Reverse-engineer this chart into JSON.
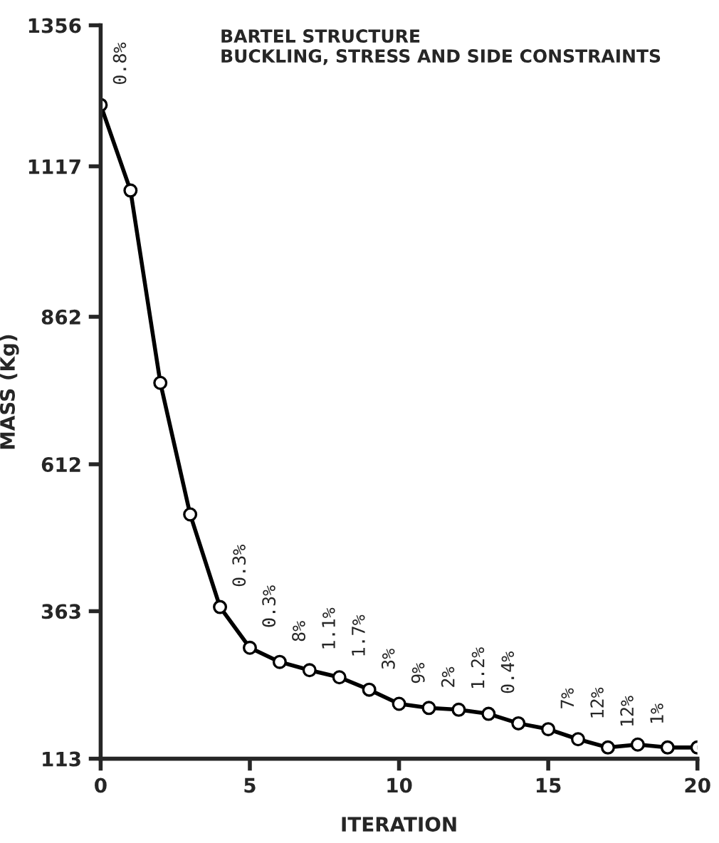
{
  "chart_data": {
    "type": "line",
    "title": "BARTEL STRUCTURE\nBUCKLING, STRESS AND SIDE CONSTRAINTS",
    "xlabel": "ITERATION",
    "ylabel": "MASS (Kg)",
    "x": [
      0,
      1,
      2,
      3,
      4,
      5,
      6,
      7,
      8,
      9,
      10,
      11,
      12,
      13,
      14,
      15,
      16,
      17,
      18,
      19,
      20
    ],
    "series": [
      {
        "color": "#000000",
        "values": [
          1221,
          1076,
          750,
          527,
          370,
          301,
          277,
          263,
          251,
          230,
          206,
          199,
          196,
          189,
          173,
          163,
          146,
          132,
          137,
          132,
          132
        ]
      }
    ],
    "xlim": [
      0,
      20
    ],
    "xticks": [
      0,
      5,
      10,
      15,
      20
    ],
    "ylim": [
      113,
      1356
    ],
    "yticks": [
      113,
      363,
      612,
      862,
      1117,
      1356
    ],
    "grid": false,
    "legend": false,
    "marker": "circle",
    "line_style": "solid",
    "annotations": [
      {
        "text": "0.8%",
        "x": 0,
        "y": 1221
      },
      {
        "text": "0.3%",
        "x": 4,
        "y": 370
      },
      {
        "text": "0.3%",
        "x": 5,
        "y": 301
      },
      {
        "text": "8%",
        "x": 6,
        "y": 277
      },
      {
        "text": "1.1%",
        "x": 7,
        "y": 263
      },
      {
        "text": "1.7%",
        "x": 8,
        "y": 251
      },
      {
        "text": "3%",
        "x": 9,
        "y": 230
      },
      {
        "text": "9%",
        "x": 10,
        "y": 206
      },
      {
        "text": "2%",
        "x": 11,
        "y": 199
      },
      {
        "text": "1.2%",
        "x": 12,
        "y": 196
      },
      {
        "text": "0.4%",
        "x": 13,
        "y": 189
      },
      {
        "text": "7%",
        "x": 15,
        "y": 163
      },
      {
        "text": "12%",
        "x": 16,
        "y": 146
      },
      {
        "text": "12%",
        "x": 17,
        "y": 132
      },
      {
        "text": "1%",
        "x": 18,
        "y": 137
      }
    ]
  }
}
